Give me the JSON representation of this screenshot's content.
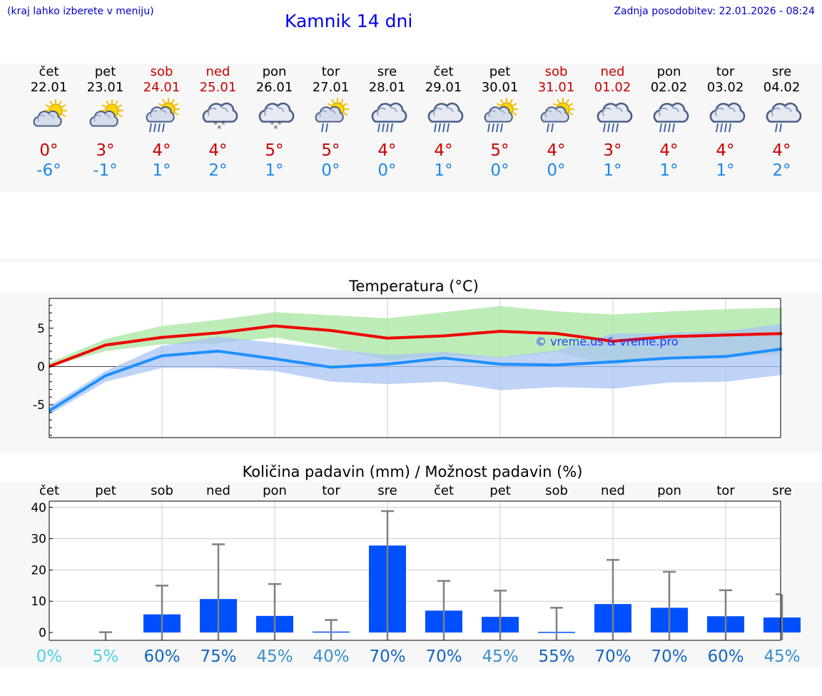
{
  "header": {
    "hint": "(kraj lahko izberete v meniju)",
    "title": "Kamnik 14 dni",
    "updated": "Zadnja posodobitev: 22.01.2026 - 08:24"
  },
  "colors": {
    "weekend": "#cc0000",
    "weekday": "#000000",
    "max": "#cc0000",
    "min": "#1e88e5",
    "bar": "#0050ff"
  },
  "days": [
    {
      "name": "čet",
      "date": "22.01",
      "weekend": false,
      "icon": "sun-cloud-icon",
      "max": "0°",
      "min": "-6°"
    },
    {
      "name": "pet",
      "date": "23.01",
      "weekend": false,
      "icon": "sun-cloud-icon",
      "max": "3°",
      "min": "-1°"
    },
    {
      "name": "sob",
      "date": "24.01",
      "weekend": true,
      "icon": "sun-cloud-rain-icon",
      "max": "4°",
      "min": "1°"
    },
    {
      "name": "ned",
      "date": "25.01",
      "weekend": true,
      "icon": "cloud-snow-icon",
      "max": "4°",
      "min": "2°"
    },
    {
      "name": "pon",
      "date": "26.01",
      "weekend": false,
      "icon": "cloud-snow-icon",
      "max": "5°",
      "min": "1°"
    },
    {
      "name": "tor",
      "date": "27.01",
      "weekend": false,
      "icon": "sun-cloud-light-rain-icon",
      "max": "5°",
      "min": "0°"
    },
    {
      "name": "sre",
      "date": "28.01",
      "weekend": false,
      "icon": "cloud-rain-icon",
      "max": "4°",
      "min": "0°"
    },
    {
      "name": "čet",
      "date": "29.01",
      "weekend": false,
      "icon": "cloud-rain-icon",
      "max": "4°",
      "min": "1°"
    },
    {
      "name": "pet",
      "date": "30.01",
      "weekend": false,
      "icon": "sun-cloud-rain-icon",
      "max": "5°",
      "min": "0°"
    },
    {
      "name": "sob",
      "date": "31.01",
      "weekend": true,
      "icon": "sun-cloud-light-rain-icon",
      "max": "4°",
      "min": "0°"
    },
    {
      "name": "ned",
      "date": "01.02",
      "weekend": true,
      "icon": "cloud-rain-icon",
      "max": "3°",
      "min": "1°"
    },
    {
      "name": "pon",
      "date": "02.02",
      "weekend": false,
      "icon": "cloud-rain-icon",
      "max": "4°",
      "min": "1°"
    },
    {
      "name": "tor",
      "date": "03.02",
      "weekend": false,
      "icon": "cloud-rain-icon",
      "max": "4°",
      "min": "1°"
    },
    {
      "name": "sre",
      "date": "04.02",
      "weekend": false,
      "icon": "cloud-light-rain-icon",
      "max": "4°",
      "min": "2°"
    }
  ],
  "chart_data": [
    {
      "type": "line",
      "title": "Temperatura (°C)",
      "watermark": "© vreme.us & vreme.pro",
      "x": [
        0,
        1,
        2,
        3,
        4,
        5,
        6,
        7,
        8,
        9,
        10,
        11,
        12,
        13
      ],
      "ylim": [
        -9.3,
        8.9
      ],
      "yticks": [
        "-5",
        "0",
        "5"
      ],
      "series": [
        {
          "name": "max",
          "color": "#ee0000",
          "values": [
            0,
            2.8,
            3.8,
            4.4,
            5.3,
            4.7,
            3.7,
            4.0,
            4.6,
            4.3,
            3.3,
            3.9,
            4.1,
            4.3
          ]
        },
        {
          "name": "min",
          "color": "#1e90ff",
          "values": [
            -5.8,
            -1.2,
            1.4,
            2.0,
            1.0,
            -0.1,
            0.3,
            1.1,
            0.3,
            0.2,
            0.6,
            1.1,
            1.3,
            2.3
          ]
        }
      ],
      "bands": [
        {
          "name": "max-range",
          "color": "#a8e6a0",
          "low": [
            0,
            2.0,
            2.9,
            3.0,
            3.8,
            2.5,
            0.8,
            1.4,
            1.1,
            1.9,
            0.2,
            1.4,
            1.2,
            1.6
          ],
          "high": [
            0.5,
            3.6,
            5.3,
            6.1,
            7.1,
            6.7,
            6.3,
            7.1,
            7.9,
            7.2,
            6.8,
            7.2,
            7.5,
            7.7
          ]
        },
        {
          "name": "min-range",
          "color": "#aac4f4",
          "low": [
            -6.3,
            -2.0,
            -0.2,
            -0.2,
            -0.6,
            -2.0,
            -2.3,
            -2.0,
            -3.1,
            -2.7,
            -2.9,
            -2.1,
            -2.0,
            -1.1
          ],
          "high": [
            -5.2,
            -0.6,
            2.7,
            3.9,
            3.1,
            2.3,
            1.5,
            1.9,
            1.2,
            2.1,
            4.3,
            4.4,
            4.6,
            5.6
          ]
        }
      ]
    },
    {
      "type": "bar",
      "title": "Količina padavin (mm) / Možnost padavin (%)",
      "categories": [
        "čet",
        "pet",
        "sob",
        "ned",
        "pon",
        "tor",
        "sre",
        "čet",
        "pet",
        "sob",
        "ned",
        "pon",
        "tor",
        "sre"
      ],
      "ylim": [
        -2.5,
        42
      ],
      "yticks": [
        "0",
        "10",
        "20",
        "30",
        "40"
      ],
      "values": [
        0,
        0,
        5.8,
        10.7,
        5.3,
        0.3,
        27.8,
        7.0,
        5.0,
        0.2,
        9.1,
        7.9,
        5.2,
        4.8
      ],
      "error_high": [
        0,
        0.1,
        15.0,
        28.2,
        15.5,
        4.0,
        38.8,
        16.5,
        13.4,
        7.9,
        23.2,
        19.4,
        13.5,
        12.2
      ],
      "chance": [
        "0%",
        "5%",
        "60%",
        "75%",
        "45%",
        "40%",
        "70%",
        "70%",
        "45%",
        "55%",
        "70%",
        "70%",
        "60%",
        "45%"
      ],
      "chance_colors": [
        "#4dd0e1",
        "#4dd0e1",
        "#1565c0",
        "#1565c0",
        "#3a8fcc",
        "#3a8fcc",
        "#1565c0",
        "#1565c0",
        "#3a8fcc",
        "#1565c0",
        "#1565c0",
        "#1565c0",
        "#1565c0",
        "#3a8fcc"
      ]
    }
  ]
}
